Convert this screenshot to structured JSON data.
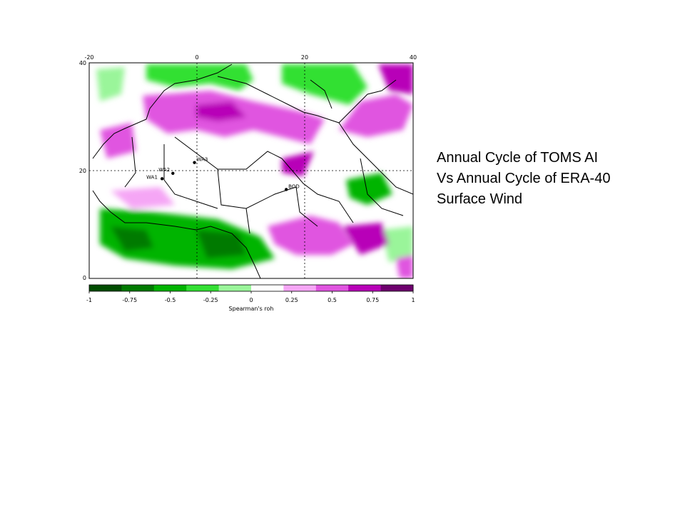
{
  "caption": {
    "line1": "Annual Cycle of TOMS AI",
    "line2": "Vs Annual Cycle of ERA-40",
    "line3": "Surface Wind"
  },
  "map": {
    "lon_ticks": [
      "-20",
      "0",
      "20",
      "40"
    ],
    "lat_ticks": [
      "40",
      "20",
      "0"
    ],
    "stations": [
      {
        "label": "WA3",
        "lon": -0.5,
        "lat": 21.5
      },
      {
        "label": "WA2",
        "lon": -4.5,
        "lat": 19.5
      },
      {
        "label": "WA1",
        "lon": -6.5,
        "lat": 18.5
      },
      {
        "label": "BOD",
        "lon": 16.5,
        "lat": 16.5
      }
    ]
  },
  "colorbar": {
    "tick_labels": [
      "-1",
      "-0.75",
      "-0.5",
      "-0.25",
      "0",
      "0.25",
      "0.5",
      "0.75",
      "1"
    ],
    "label": "Spearman's roh",
    "colors": [
      "#004d00",
      "#007a00",
      "#00b400",
      "#33e033",
      "#9af59a",
      "#ffffff",
      "#f5a6f5",
      "#e055e0",
      "#b800b8",
      "#6e006e"
    ]
  }
}
